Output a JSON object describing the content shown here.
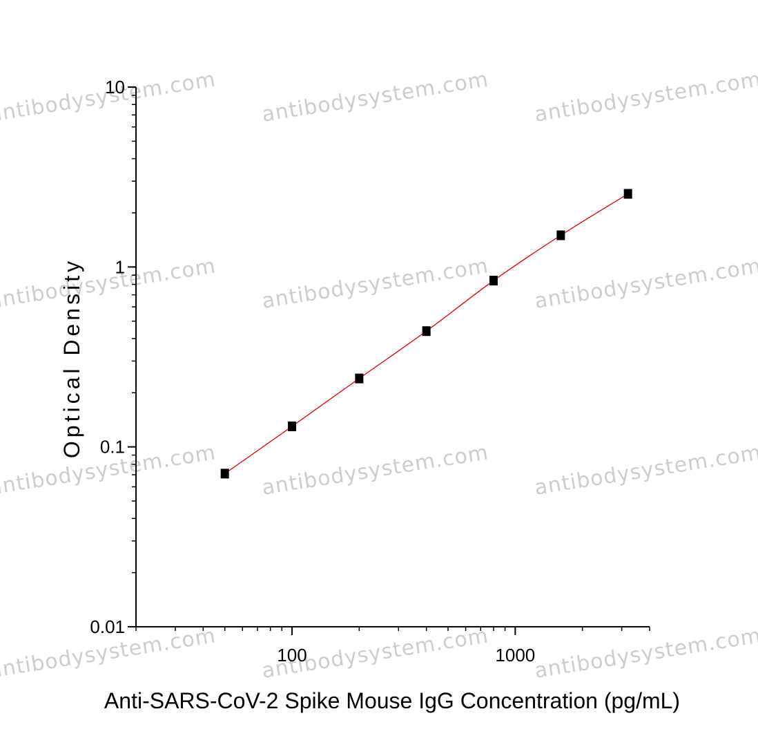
{
  "chart_data": {
    "type": "scatter",
    "title": "",
    "xlabel": "Anti-SARS-CoV-2 Spike Mouse IgG Concentration (pg/mL)",
    "ylabel": "Optical Density",
    "xscale": "log",
    "yscale": "log",
    "xlim": [
      20,
      4000
    ],
    "ylim": [
      0.01,
      10
    ],
    "xticks": [
      {
        "value": 100,
        "label": "100"
      },
      {
        "value": 1000,
        "label": "1000"
      }
    ],
    "yticks": [
      {
        "value": 0.01,
        "label": "0.01"
      },
      {
        "value": 0.1,
        "label": "0.1"
      },
      {
        "value": 1,
        "label": "1"
      },
      {
        "value": 10,
        "label": "10"
      }
    ],
    "grid": false,
    "legend": "none",
    "series": [
      {
        "points": [
          {
            "x": 50,
            "y": 0.071
          },
          {
            "x": 100,
            "y": 0.13
          },
          {
            "x": 200,
            "y": 0.24
          },
          {
            "x": 400,
            "y": 0.44
          },
          {
            "x": 800,
            "y": 0.84
          },
          {
            "x": 1600,
            "y": 1.5
          },
          {
            "x": 3200,
            "y": 2.55
          }
        ],
        "marker_color": "#000000",
        "fit_line_color": "#d40000"
      }
    ],
    "watermark": "antibodysystem.com"
  }
}
